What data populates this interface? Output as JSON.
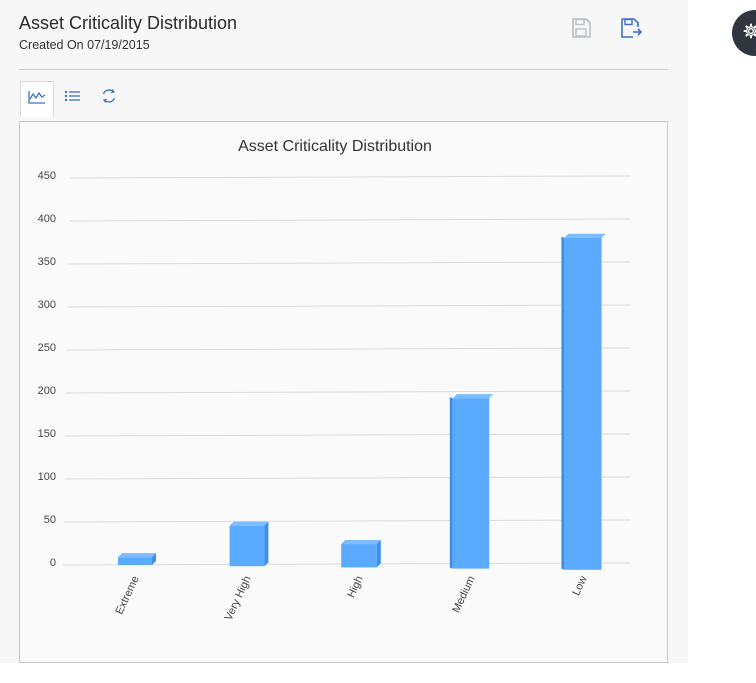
{
  "header": {
    "title": "Asset Criticality Distribution",
    "subtitle": "Created On 07/19/2015",
    "icons": [
      "save-icon",
      "save-as-icon"
    ]
  },
  "toolbar": {
    "buttons": [
      "chart-view-icon",
      "list-view-icon",
      "refresh-icon"
    ]
  },
  "settings": {
    "icon": "gear-icon"
  },
  "chart_data": {
    "type": "bar",
    "title": "Asset Criticality Distribution",
    "xlabel": "",
    "ylabel": "",
    "categories": [
      "Extreme",
      "Very High",
      "High",
      "Medium",
      "Low"
    ],
    "values": [
      8,
      46,
      26,
      197,
      385
    ],
    "ylim": [
      0,
      450
    ],
    "yticks": [
      0,
      50,
      100,
      150,
      200,
      250,
      300,
      350,
      400,
      450
    ],
    "grid": true,
    "legend": "none",
    "bar_color": "#5aabff"
  }
}
